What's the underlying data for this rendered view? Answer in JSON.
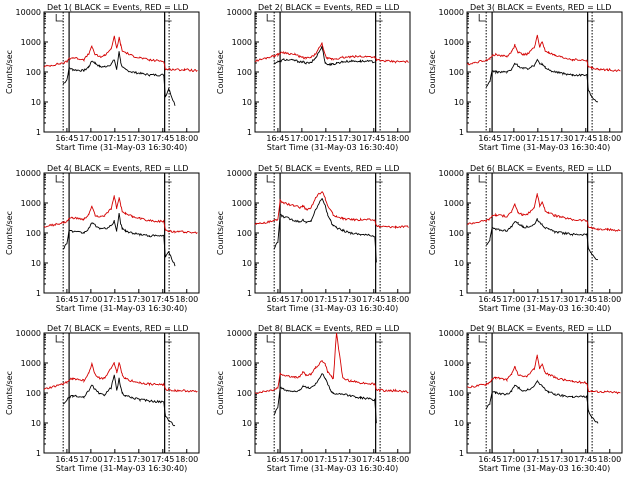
{
  "x_tick_labels": [
    "16:45",
    "17:00",
    "17:15",
    "17:30",
    "17:45",
    "18:00"
  ],
  "xlabel": "Start Time (31-May-03 16:30:40)",
  "ylabel": "Counts/sec",
  "y_tick_labels": [
    "1",
    "10",
    "100",
    "1000",
    "10000"
  ],
  "colors": {
    "events": "#000000",
    "lld": "#d40000",
    "axis": "#000000"
  },
  "chart_data": [
    {
      "type": "line",
      "panel": 1,
      "title": "Det 1( BLACK = Events, RED = LLD",
      "xlabel": "Start Time (31-May-03 16:30:40)",
      "ylabel": "Counts/sec",
      "xlim_minutes": [
        0,
        97
      ],
      "ylim": [
        1,
        10000
      ],
      "yscale": "log",
      "x_minutes": [
        0,
        12,
        14.3,
        15.7,
        18,
        25,
        28,
        30,
        32,
        35,
        38,
        42,
        44,
        45.5,
        47,
        48,
        49,
        51,
        55,
        60,
        66,
        75,
        76,
        78,
        82,
        88,
        96
      ],
      "series": [
        {
          "name": "Events",
          "values": [
            null,
            40,
            55,
            140,
            120,
            110,
            150,
            230,
            200,
            150,
            150,
            180,
            260,
            120,
            500,
            220,
            140,
            120,
            100,
            90,
            80,
            80,
            15,
            28,
            8,
            null,
            null
          ]
        },
        {
          "name": "LLD",
          "values": [
            150,
            200,
            220,
            280,
            300,
            260,
            400,
            700,
            380,
            320,
            360,
            600,
            1500,
            600,
            1400,
            800,
            500,
            450,
            350,
            300,
            250,
            230,
            120,
            125,
            120,
            120,
            110
          ]
        }
      ]
    },
    {
      "type": "line",
      "panel": 2,
      "title": "Det 2( BLACK = Events, RED = LLD",
      "xlabel": "Start Time (31-May-03 16:30:40)",
      "ylabel": "Counts/sec",
      "xlim_minutes": [
        0,
        97
      ],
      "ylim": [
        1,
        10000
      ],
      "yscale": "log",
      "x_minutes": [
        0,
        12,
        14.3,
        15.7,
        18,
        25,
        28,
        30,
        32,
        35,
        38,
        42,
        44,
        45.5,
        47,
        48,
        49,
        51,
        55,
        60,
        66,
        75,
        76,
        78,
        82,
        88,
        96
      ],
      "series": [
        {
          "name": "Events",
          "values": [
            null,
            200,
            220,
            230,
            260,
            240,
            220,
            210,
            200,
            200,
            300,
            700,
            200,
            180,
            180,
            180,
            180,
            200,
            220,
            230,
            230,
            220,
            null,
            null,
            null,
            null,
            null
          ]
        },
        {
          "name": "LLD",
          "values": [
            230,
            350,
            380,
            420,
            450,
            380,
            330,
            300,
            290,
            300,
            400,
            900,
            350,
            280,
            270,
            270,
            270,
            280,
            300,
            320,
            330,
            320,
            260,
            240,
            230,
            220,
            220
          ]
        }
      ]
    },
    {
      "type": "line",
      "panel": 3,
      "title": "Det 3( BLACK = Events, RED = LLD",
      "xlabel": "Start Time (31-May-03 16:30:40)",
      "ylabel": "Counts/sec",
      "xlim_minutes": [
        0,
        97
      ],
      "ylim": [
        1,
        10000
      ],
      "yscale": "log",
      "x_minutes": [
        0,
        12,
        14.3,
        15.7,
        18,
        25,
        28,
        30,
        32,
        35,
        38,
        42,
        44,
        45.5,
        47,
        48,
        49,
        51,
        55,
        60,
        66,
        75,
        76,
        78,
        82,
        88,
        96
      ],
      "series": [
        {
          "name": "Events",
          "values": [
            null,
            30,
            50,
            110,
            100,
            100,
            120,
            200,
            160,
            130,
            130,
            160,
            280,
            200,
            180,
            160,
            140,
            120,
            100,
            90,
            80,
            80,
            25,
            15,
            10,
            null,
            null
          ]
        },
        {
          "name": "LLD",
          "values": [
            180,
            250,
            280,
            350,
            380,
            330,
            480,
            800,
            450,
            380,
            400,
            650,
            1600,
            700,
            1000,
            700,
            500,
            450,
            350,
            300,
            260,
            240,
            150,
            140,
            120,
            120,
            110
          ]
        }
      ]
    },
    {
      "type": "line",
      "panel": 4,
      "title": "Det 4( BLACK = Events, RED = LLD",
      "xlabel": "Start Time (31-May-03 16:30:40)",
      "ylabel": "Counts/sec",
      "xlim_minutes": [
        0,
        97
      ],
      "ylim": [
        1,
        10000
      ],
      "yscale": "log",
      "x_minutes": [
        0,
        12,
        14.3,
        15.7,
        18,
        25,
        28,
        30,
        32,
        35,
        38,
        42,
        44,
        45.5,
        47,
        48,
        49,
        51,
        55,
        60,
        66,
        75,
        76,
        78,
        82,
        88,
        96
      ],
      "series": [
        {
          "name": "Events",
          "values": [
            null,
            30,
            45,
            130,
            110,
            100,
            140,
            220,
            180,
            140,
            140,
            170,
            250,
            120,
            450,
            200,
            140,
            120,
            100,
            90,
            80,
            80,
            15,
            25,
            8,
            null,
            null
          ]
        },
        {
          "name": "LLD",
          "values": [
            160,
            220,
            240,
            300,
            320,
            280,
            420,
            750,
            400,
            340,
            380,
            620,
            1700,
            650,
            1500,
            850,
            520,
            460,
            360,
            310,
            260,
            240,
            130,
            120,
            110,
            110,
            100
          ]
        }
      ]
    },
    {
      "type": "line",
      "panel": 5,
      "title": "Det 5( BLACK = Events, RED = LLD",
      "xlabel": "Start Time (31-May-03 16:30:40)",
      "ylabel": "Counts/sec",
      "xlim_minutes": [
        0,
        97
      ],
      "ylim": [
        1,
        10000
      ],
      "yscale": "log",
      "x_minutes": [
        0,
        12,
        14.3,
        15.7,
        18,
        25,
        28,
        30,
        32,
        35,
        38,
        42,
        44,
        45.5,
        47,
        48,
        49,
        51,
        55,
        60,
        66,
        75,
        76,
        78,
        82,
        88,
        96
      ],
      "series": [
        {
          "name": "Events",
          "values": [
            null,
            30,
            50,
            400,
            350,
            260,
            240,
            280,
            220,
            250,
            600,
            1500,
            800,
            400,
            300,
            200,
            180,
            150,
            120,
            100,
            90,
            80,
            10,
            null,
            null,
            null,
            null
          ]
        },
        {
          "name": "LLD",
          "values": [
            200,
            250,
            280,
            1200,
            1000,
            800,
            700,
            800,
            600,
            700,
            1500,
            2500,
            1400,
            800,
            600,
            500,
            400,
            350,
            300,
            280,
            280,
            270,
            170,
            165,
            160,
            160,
            160
          ]
        }
      ]
    },
    {
      "type": "line",
      "panel": 6,
      "title": "Det 6( BLACK = Events, RED = LLD",
      "xlabel": "Start Time (31-May-03 16:30:40)",
      "ylabel": "Counts/sec",
      "xlim_minutes": [
        0,
        97
      ],
      "ylim": [
        1,
        10000
      ],
      "yscale": "log",
      "x_minutes": [
        0,
        12,
        14.3,
        15.7,
        18,
        25,
        28,
        30,
        32,
        35,
        38,
        42,
        44,
        45.5,
        47,
        48,
        49,
        51,
        55,
        60,
        66,
        75,
        76,
        78,
        82,
        88,
        96
      ],
      "series": [
        {
          "name": "Events",
          "values": [
            null,
            40,
            60,
            150,
            130,
            120,
            160,
            250,
            210,
            160,
            160,
            190,
            300,
            220,
            200,
            170,
            150,
            130,
            110,
            100,
            90,
            90,
            30,
            20,
            12,
            null,
            null
          ]
        },
        {
          "name": "LLD",
          "values": [
            200,
            260,
            300,
            380,
            400,
            360,
            520,
            900,
            480,
            400,
            430,
            700,
            2000,
            800,
            1100,
            750,
            550,
            480,
            380,
            330,
            280,
            260,
            160,
            150,
            130,
            130,
            120
          ]
        }
      ]
    },
    {
      "type": "line",
      "panel": 7,
      "title": "Det 7( BLACK = Events, RED = LLD",
      "xlabel": "Start Time (31-May-03 16:30:40)",
      "ylabel": "Counts/sec",
      "xlim_minutes": [
        0,
        97
      ],
      "ylim": [
        1,
        10000
      ],
      "yscale": "log",
      "x_minutes": [
        0,
        12,
        14.3,
        15.7,
        18,
        25,
        28,
        30,
        32,
        35,
        38,
        42,
        44,
        45.5,
        47,
        48,
        49,
        51,
        55,
        60,
        66,
        75,
        76,
        78,
        82,
        88,
        96
      ],
      "series": [
        {
          "name": "Events",
          "values": [
            null,
            40,
            60,
            70,
            80,
            70,
            120,
            180,
            130,
            90,
            90,
            150,
            400,
            120,
            300,
            150,
            100,
            80,
            70,
            60,
            55,
            50,
            18,
            12,
            8,
            null,
            null
          ]
        },
        {
          "name": "LLD",
          "values": [
            130,
            200,
            230,
            280,
            300,
            260,
            450,
            900,
            420,
            300,
            320,
            700,
            1000,
            500,
            1000,
            700,
            400,
            300,
            250,
            220,
            200,
            190,
            130,
            130,
            120,
            120,
            110
          ]
        }
      ]
    },
    {
      "type": "line",
      "panel": 8,
      "title": "Det 8( BLACK = Events, RED = LLD",
      "xlabel": "Start Time (31-May-03 16:30:40)",
      "ylabel": "Counts/sec",
      "xlim_minutes": [
        0,
        97
      ],
      "ylim": [
        1,
        10000
      ],
      "yscale": "log",
      "x_minutes": [
        0,
        12,
        14.3,
        15.7,
        18,
        25,
        28,
        30,
        32,
        35,
        38,
        42,
        44,
        45.5,
        47,
        48,
        49,
        51,
        55,
        60,
        66,
        75,
        76,
        78,
        82,
        88,
        96
      ],
      "series": [
        {
          "name": "Events",
          "values": [
            null,
            20,
            35,
            150,
            130,
            110,
            120,
            180,
            150,
            150,
            200,
            450,
            300,
            200,
            130,
            110,
            100,
            90,
            90,
            80,
            70,
            60,
            10,
            null,
            null,
            null,
            null
          ]
        },
        {
          "name": "LLD",
          "values": [
            100,
            130,
            150,
            450,
            400,
            330,
            350,
            500,
            400,
            420,
            700,
            1200,
            900,
            500,
            400,
            350,
            300,
            10000,
            300,
            250,
            220,
            200,
            130,
            125,
            120,
            120,
            110
          ]
        }
      ]
    },
    {
      "type": "line",
      "panel": 9,
      "title": "Det 9( BLACK = Events, RED = LLD",
      "xlabel": "Start Time (31-May-03 16:30:40)",
      "ylabel": "Counts/sec",
      "xlim_minutes": [
        0,
        97
      ],
      "ylim": [
        1,
        10000
      ],
      "yscale": "log",
      "x_minutes": [
        0,
        12,
        14.3,
        15.7,
        18,
        25,
        28,
        30,
        32,
        35,
        38,
        42,
        44,
        45.5,
        47,
        48,
        49,
        51,
        55,
        60,
        66,
        75,
        76,
        78,
        82,
        88,
        96
      ],
      "series": [
        {
          "name": "Events",
          "values": [
            null,
            30,
            45,
            110,
            100,
            90,
            120,
            180,
            150,
            120,
            130,
            160,
            260,
            190,
            170,
            150,
            130,
            110,
            90,
            80,
            75,
            75,
            25,
            15,
            10,
            null,
            null
          ]
        },
        {
          "name": "LLD",
          "values": [
            150,
            200,
            230,
            300,
            320,
            280,
            420,
            750,
            400,
            340,
            380,
            620,
            1800,
            650,
            950,
            650,
            470,
            420,
            330,
            280,
            240,
            220,
            120,
            115,
            110,
            110,
            100
          ]
        }
      ]
    }
  ]
}
